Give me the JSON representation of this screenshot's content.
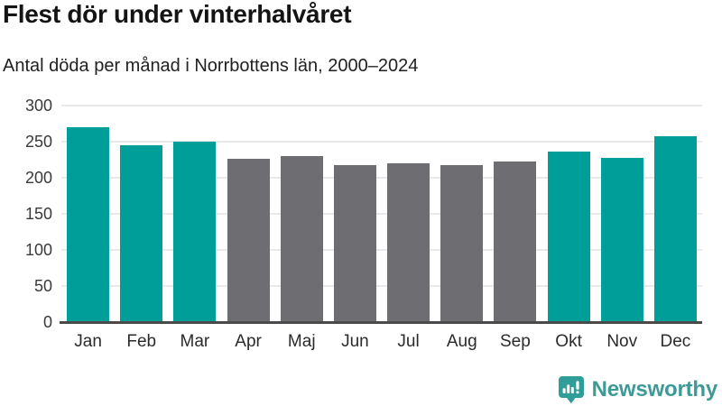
{
  "header": {
    "title": "Flest dör under vinterhalvåret",
    "subtitle": "Antal döda per månad i Norrbottens län, 2000–2024"
  },
  "chart_data": {
    "type": "bar",
    "title": "Flest dör under vinterhalvåret",
    "subtitle": "Antal döda per månad i Norrbottens län, 2000–2024",
    "categories": [
      "Jan",
      "Feb",
      "Mar",
      "Apr",
      "Maj",
      "Jun",
      "Jul",
      "Aug",
      "Sep",
      "Okt",
      "Nov",
      "Dec"
    ],
    "values": [
      270,
      245,
      250,
      226,
      230,
      218,
      220,
      217,
      222,
      236,
      228,
      257
    ],
    "bar_roles": [
      "highlight",
      "highlight",
      "highlight",
      "muted",
      "muted",
      "muted",
      "muted",
      "muted",
      "muted",
      "highlight",
      "highlight",
      "highlight"
    ],
    "colors": {
      "highlight": "#009e98",
      "muted": "#6e6e72",
      "gridline": "#e9e9e9",
      "axis": "#4a4a4a"
    },
    "xlabel": "",
    "ylabel": "",
    "ylim": [
      0,
      300
    ],
    "yticks": [
      0,
      50,
      100,
      150,
      200,
      250,
      300
    ],
    "grid": true,
    "legend": "none"
  },
  "footer": {
    "brand": "Newsworthy",
    "brand_color": "#3e9a96",
    "icon": "newsworthy-chart-bubble-icon",
    "icon_color": "#2f9d98"
  }
}
